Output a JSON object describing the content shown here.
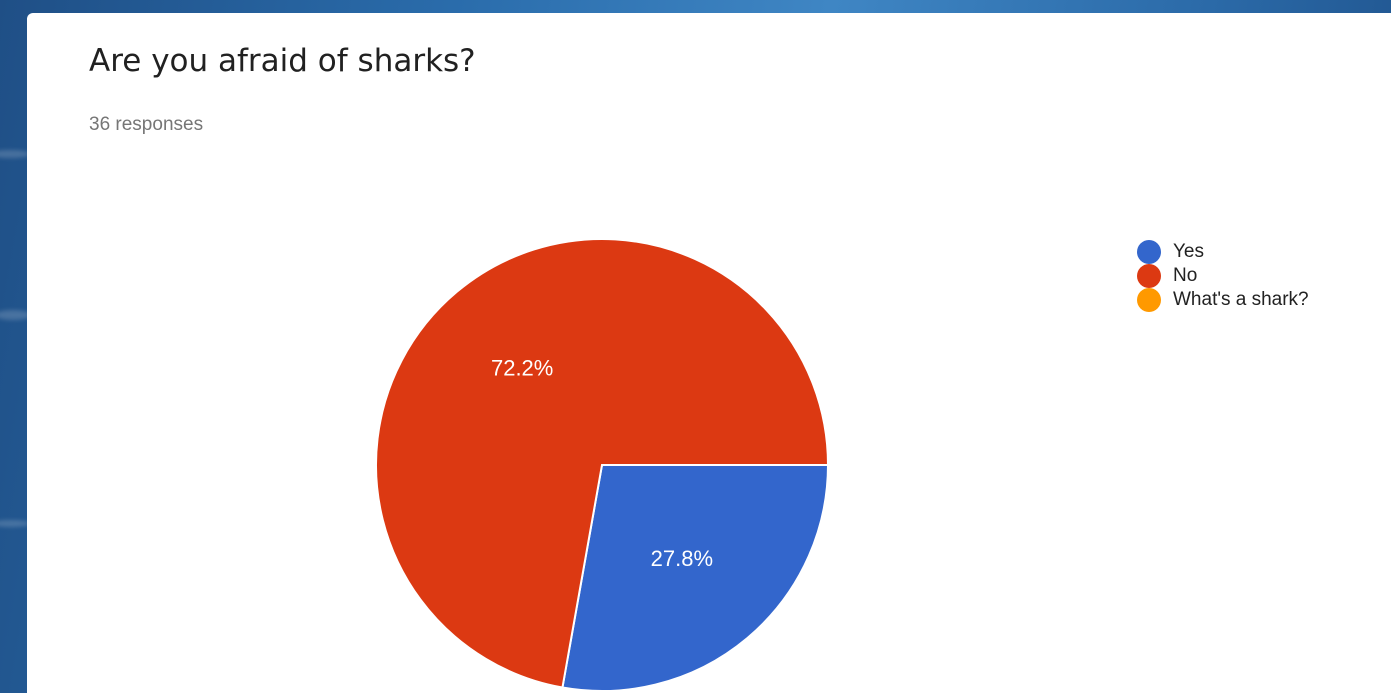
{
  "form": {
    "question": "Are you afraid of sharks?",
    "responses_text": "36 responses"
  },
  "chart_data": {
    "type": "pie",
    "title": "Are you afraid of sharks?",
    "subtitle": "36 responses",
    "legend_position": "right",
    "slices": [
      {
        "label": "Yes",
        "value": 27.8,
        "display": "27.8%",
        "color": "#3366cc"
      },
      {
        "label": "No",
        "value": 72.2,
        "display": "72.2%",
        "color": "#dc3912"
      },
      {
        "label": "What's a shark?",
        "value": 0,
        "display": "",
        "color": "#ff9900"
      }
    ]
  }
}
